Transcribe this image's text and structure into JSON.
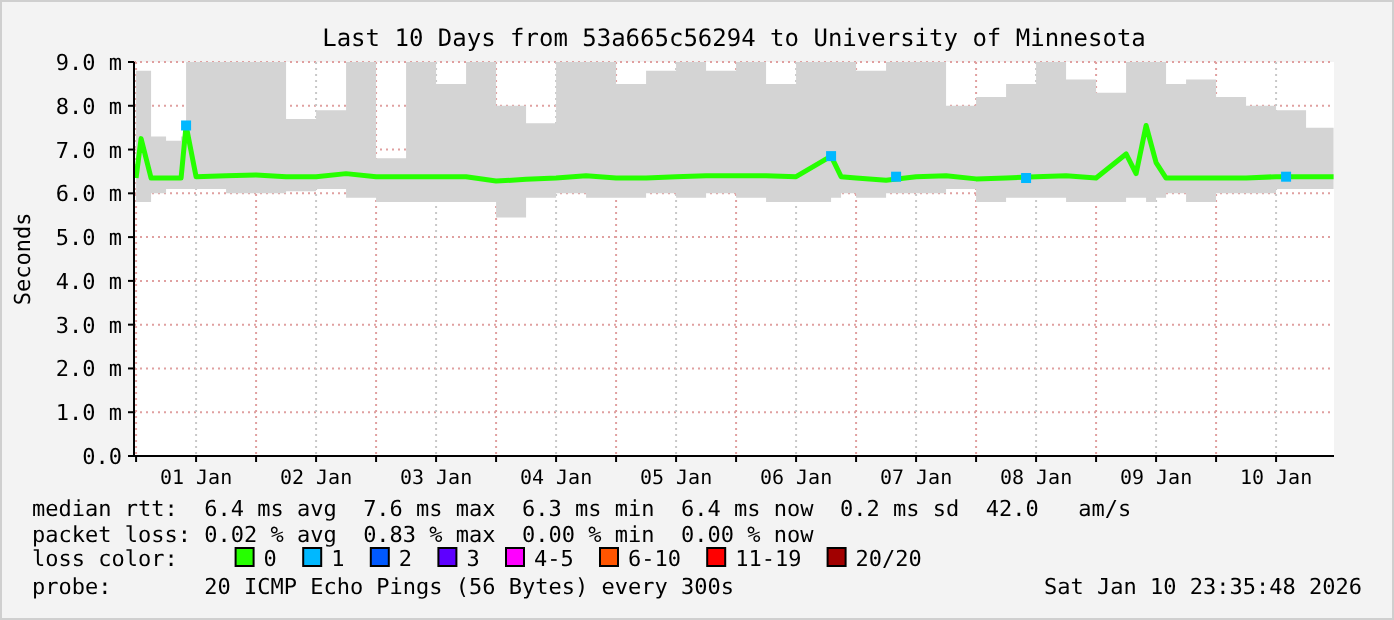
{
  "chart_data": {
    "type": "line",
    "title": "Last 10 Days from 53a665c56294 to University of Minnesota",
    "ylabel": "Seconds",
    "xlim": [
      "2025-12-31T23:35",
      "2026-01-10T23:35"
    ],
    "xticks": [
      {
        "value": "2026-01-01T00:00",
        "label": null
      },
      {
        "value": "2026-01-01T12:00",
        "label": "01 Jan"
      },
      {
        "value": "2026-01-02T00:00",
        "label": null
      },
      {
        "value": "2026-01-02T12:00",
        "label": "02 Jan"
      },
      {
        "value": "2026-01-03T00:00",
        "label": null
      },
      {
        "value": "2026-01-03T12:00",
        "label": "03 Jan"
      },
      {
        "value": "2026-01-04T00:00",
        "label": null
      },
      {
        "value": "2026-01-04T12:00",
        "label": "04 Jan"
      },
      {
        "value": "2026-01-05T00:00",
        "label": null
      },
      {
        "value": "2026-01-05T12:00",
        "label": "05 Jan"
      },
      {
        "value": "2026-01-06T00:00",
        "label": null
      },
      {
        "value": "2026-01-06T12:00",
        "label": "06 Jan"
      },
      {
        "value": "2026-01-07T00:00",
        "label": null
      },
      {
        "value": "2026-01-07T12:00",
        "label": "07 Jan"
      },
      {
        "value": "2026-01-08T00:00",
        "label": null
      },
      {
        "value": "2026-01-08T12:00",
        "label": "08 Jan"
      },
      {
        "value": "2026-01-09T00:00",
        "label": null
      },
      {
        "value": "2026-01-09T12:00",
        "label": "09 Jan"
      },
      {
        "value": "2026-01-10T00:00",
        "label": null
      },
      {
        "value": "2026-01-10T12:00",
        "label": "10 Jan"
      }
    ],
    "ylim": [
      0,
      9
    ],
    "yticks": [
      {
        "value": 0,
        "label": "0.0"
      },
      {
        "value": 1,
        "label": "1.0 m"
      },
      {
        "value": 2,
        "label": "2.0 m"
      },
      {
        "value": 3,
        "label": "3.0 m"
      },
      {
        "value": 4,
        "label": "4.0 m"
      },
      {
        "value": 5,
        "label": "5.0 m"
      },
      {
        "value": 6,
        "label": "6.0 m"
      },
      {
        "value": 7,
        "label": "7.0 m"
      },
      {
        "value": 8,
        "label": "8.0 m"
      },
      {
        "value": 9,
        "label": "9.0 m"
      }
    ],
    "grid": true,
    "legend": "bottom",
    "legend_title": "loss color:",
    "series": [
      {
        "name": "0",
        "color": "#26ff00",
        "x": [
          "2026-01-01T00:00",
          "2026-01-01T01:00",
          "2026-01-01T03:00",
          "2026-01-01T06:00",
          "2026-01-01T09:00",
          "2026-01-01T10:00",
          "2026-01-01T12:00",
          "2026-01-01T18:00",
          "2026-01-02T00:00",
          "2026-01-02T06:00",
          "2026-01-02T12:00",
          "2026-01-02T18:00",
          "2026-01-03T00:00",
          "2026-01-03T06:00",
          "2026-01-03T12:00",
          "2026-01-03T18:00",
          "2026-01-04T00:00",
          "2026-01-04T06:00",
          "2026-01-04T12:00",
          "2026-01-04T18:00",
          "2026-01-05T00:00",
          "2026-01-05T06:00",
          "2026-01-05T12:00",
          "2026-01-05T18:00",
          "2026-01-06T00:00",
          "2026-01-06T06:00",
          "2026-01-06T12:00",
          "2026-01-06T19:00",
          "2026-01-06T21:00",
          "2026-01-07T00:00",
          "2026-01-07T06:00",
          "2026-01-07T12:00",
          "2026-01-07T18:00",
          "2026-01-08T00:00",
          "2026-01-08T06:00",
          "2026-01-08T12:00",
          "2026-01-08T18:00",
          "2026-01-09T00:00",
          "2026-01-09T06:00",
          "2026-01-09T08:00",
          "2026-01-09T10:00",
          "2026-01-09T12:00",
          "2026-01-09T14:00",
          "2026-01-09T18:00",
          "2026-01-10T00:00",
          "2026-01-10T06:00",
          "2026-01-10T12:00",
          "2026-01-10T18:00",
          "2026-01-10T23:30"
        ],
        "values": [
          6.35,
          7.25,
          6.35,
          6.35,
          6.35,
          7.55,
          6.38,
          6.4,
          6.42,
          6.38,
          6.38,
          6.45,
          6.38,
          6.38,
          6.38,
          6.38,
          6.28,
          6.32,
          6.35,
          6.4,
          6.35,
          6.35,
          6.38,
          6.4,
          6.4,
          6.4,
          6.38,
          6.85,
          6.38,
          6.35,
          6.3,
          6.38,
          6.4,
          6.33,
          6.35,
          6.38,
          6.4,
          6.35,
          6.9,
          6.45,
          7.55,
          6.7,
          6.35,
          6.35,
          6.35,
          6.35,
          6.38,
          6.38,
          6.38
        ],
        "lower": [
          5.8,
          5.8,
          6.0,
          6.1,
          6.1,
          6.1,
          6.1,
          6.0,
          6.0,
          6.05,
          6.1,
          5.9,
          5.8,
          5.8,
          5.8,
          5.8,
          5.45,
          5.9,
          6.0,
          5.9,
          5.9,
          6.0,
          5.9,
          6.0,
          5.9,
          5.8,
          5.8,
          5.9,
          6.0,
          5.9,
          6.0,
          6.0,
          6.1,
          5.8,
          5.9,
          5.9,
          5.8,
          5.8,
          5.9,
          5.9,
          5.8,
          5.9,
          6.0,
          5.8,
          6.0,
          6.0,
          6.1,
          6.1,
          6.0
        ],
        "upper": [
          8.8,
          8.8,
          7.3,
          7.2,
          7.3,
          9.0,
          9.0,
          9.0,
          9.0,
          7.7,
          7.9,
          9.0,
          6.8,
          9.0,
          8.5,
          9.0,
          8.0,
          7.6,
          9.0,
          9.0,
          8.5,
          8.8,
          9.0,
          8.8,
          9.0,
          8.5,
          9.0,
          9.0,
          9.0,
          8.8,
          9.0,
          9.0,
          8.0,
          8.2,
          8.5,
          9.0,
          8.6,
          8.3,
          9.0,
          9.0,
          9.0,
          9.0,
          8.5,
          8.6,
          8.2,
          8.0,
          7.9,
          7.5,
          7.0
        ]
      },
      {
        "name": "1",
        "type": "scatter",
        "marker": "square",
        "color": "#00b8ff",
        "x": [
          "2026-01-01T10:00",
          "2026-01-06T19:00",
          "2026-01-07T08:00",
          "2026-01-08T10:00",
          "2026-01-10T14:00"
        ],
        "values": [
          7.55,
          6.85,
          6.38,
          6.35,
          6.38
        ]
      },
      {
        "name": "2",
        "type": "scatter",
        "color": "#0059ff"
      },
      {
        "name": "3",
        "type": "scatter",
        "color": "#5e00ff"
      },
      {
        "name": "4-5",
        "type": "scatter",
        "color": "#ff00ff"
      },
      {
        "name": "6-10",
        "type": "scatter",
        "color": "#ff5500"
      },
      {
        "name": "11-19",
        "type": "scatter",
        "color": "#ff0000"
      },
      {
        "name": "20/20",
        "type": "scatter",
        "color": "#a10000"
      }
    ],
    "annotations": [
      "median rtt:  6.4 ms avg  7.6 ms max  6.3 ms min  6.4 ms now  0.2 ms sd  42.0   am/s",
      "packet loss: 0.02 % avg  0.83 % max  0.00 % min  0.00 % now",
      "probe:       20 ICMP Echo Pings (56 Bytes) every 300s",
      "Sat Jan 10 23:35:48 2026"
    ]
  }
}
